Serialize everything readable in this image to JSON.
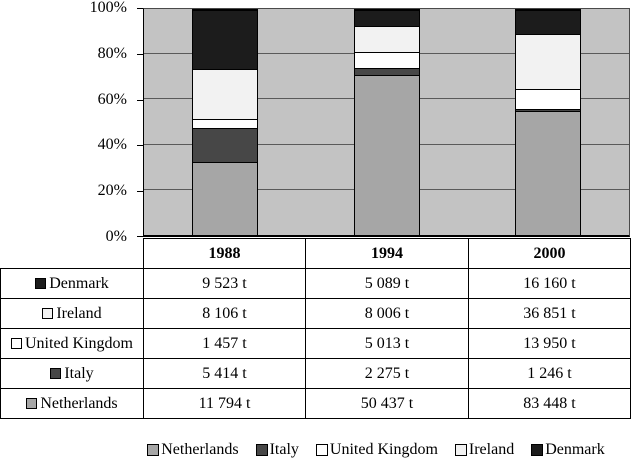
{
  "colors": {
    "netherlands": "#a6a6a6",
    "italy": "#474747",
    "united_kingdom": "#ffffff",
    "ireland": "#f2f2f2",
    "denmark": "#1c1c1c",
    "plot_background": "#c3c3c3",
    "gridline": "#5a5a5a"
  },
  "chart_data": {
    "type": "bar",
    "subtype": "stacked-100-percent",
    "categories": [
      "1988",
      "1994",
      "2000"
    ],
    "series": [
      {
        "name": "Netherlands",
        "key": "netherlands",
        "values": [
          11794,
          50437,
          83448
        ]
      },
      {
        "name": "Italy",
        "key": "italy",
        "values": [
          5414,
          2275,
          1246
        ]
      },
      {
        "name": "United Kingdom",
        "key": "united_kingdom",
        "values": [
          1457,
          5013,
          13950
        ]
      },
      {
        "name": "Ireland",
        "key": "ireland",
        "values": [
          8106,
          8006,
          36851
        ]
      },
      {
        "name": "Denmark",
        "key": "denmark",
        "values": [
          9523,
          5089,
          16160
        ]
      }
    ],
    "unit": "t",
    "title": "",
    "xlabel": "",
    "ylabel": "",
    "ylim": [
      0,
      100
    ],
    "y_ticks": [
      "0%",
      "20%",
      "40%",
      "60%",
      "80%",
      "100%"
    ],
    "grid": true,
    "legend_position": "bottom"
  },
  "table": {
    "headers": [
      "1988",
      "1994",
      "2000"
    ],
    "rows": [
      {
        "label": "Denmark",
        "key": "denmark",
        "values": [
          "9 523 t",
          "5 089 t",
          "16 160 t"
        ]
      },
      {
        "label": "Ireland",
        "key": "ireland",
        "values": [
          "8 106 t",
          "8 006 t",
          "36 851 t"
        ]
      },
      {
        "label": "United Kingdom",
        "key": "united_kingdom",
        "values": [
          "1 457 t",
          "5 013 t",
          "13 950 t"
        ]
      },
      {
        "label": "Italy",
        "key": "italy",
        "values": [
          "5 414 t",
          "2 275 t",
          "1 246 t"
        ]
      },
      {
        "label": "Netherlands",
        "key": "netherlands",
        "values": [
          "11 794 t",
          "50 437 t",
          "83 448 t"
        ]
      }
    ]
  },
  "legend": {
    "items": [
      {
        "label": "Netherlands",
        "key": "netherlands"
      },
      {
        "label": "Italy",
        "key": "italy"
      },
      {
        "label": "United Kingdom",
        "key": "united_kingdom"
      },
      {
        "label": "Ireland",
        "key": "ireland"
      },
      {
        "label": "Denmark",
        "key": "denmark"
      }
    ]
  }
}
